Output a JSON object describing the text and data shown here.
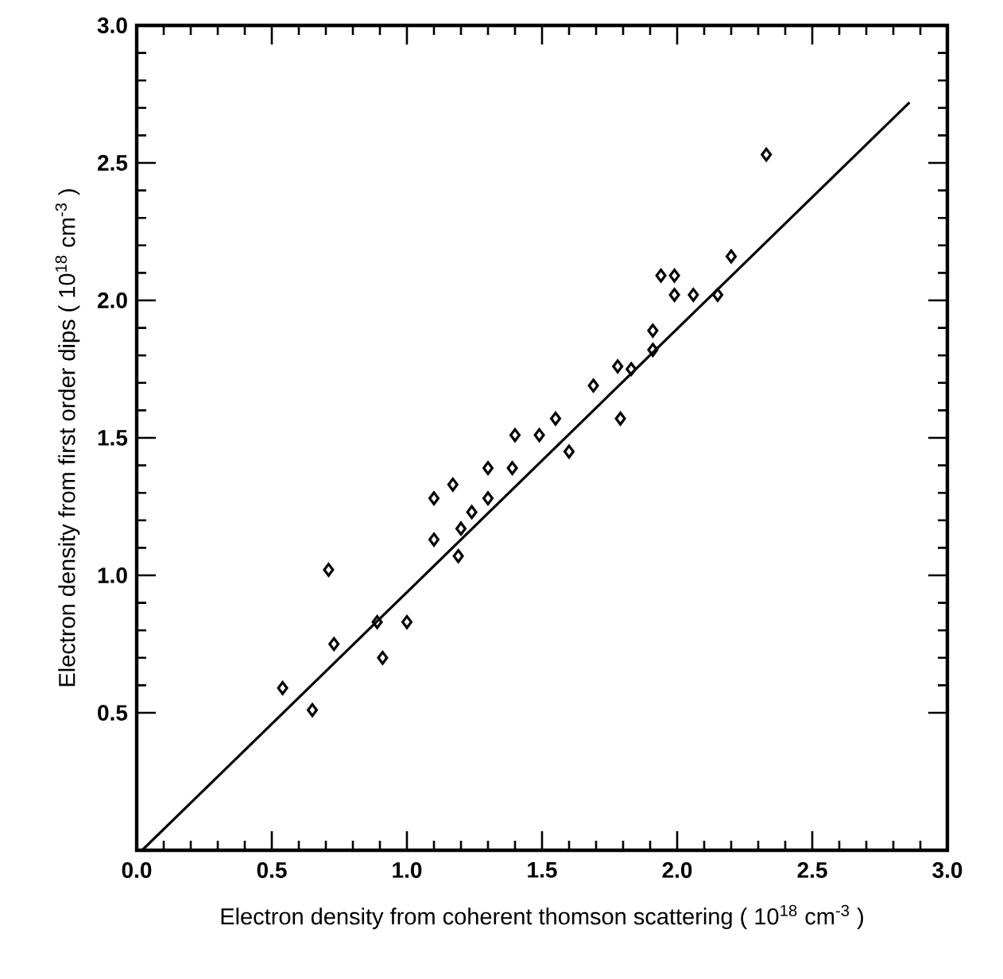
{
  "chart_data": {
    "type": "scatter",
    "xlabel": "Electron density from coherent thomson scattering ( 10$^{18}$ cm$^{-3}$ )",
    "ylabel": "Electron density from first order dips ( 10$^{18}$ cm$^{-3}$ )",
    "xlim": [
      0,
      3
    ],
    "ylim": [
      0,
      3
    ],
    "xticks": [
      {
        "value": 0,
        "label": "0.0"
      },
      0.5,
      {
        "value": 1,
        "label": "1.0"
      },
      1.5,
      {
        "value": 2,
        "label": "2.0"
      },
      2.5,
      {
        "value": 3,
        "label": "3.0"
      }
    ],
    "yticks": [
      {
        "value": 0.5,
        "label": "0.5"
      },
      {
        "value": 1,
        "label": "1.0"
      },
      {
        "value": 1.5,
        "label": "1.5"
      },
      {
        "value": 2,
        "label": "2.0"
      },
      {
        "value": 2.5,
        "label": "2.5"
      },
      {
        "value": 3,
        "label": "3.0"
      }
    ],
    "grid": false,
    "series": [
      {
        "color": "#000000",
        "marker": "diamond",
        "x": [
          0.54,
          0.65,
          0.71,
          0.73,
          0.89,
          0.91,
          1.0,
          1.1,
          1.17,
          1.1,
          1.19,
          1.2,
          1.24,
          1.3,
          1.3,
          1.39,
          1.4,
          1.49,
          1.55,
          1.6,
          1.69,
          1.79,
          1.78,
          1.83,
          1.91,
          1.91,
          1.94,
          1.99,
          1.99,
          2.06,
          2.15,
          2.2,
          2.33
        ],
        "values": [
          0.59,
          0.51,
          1.02,
          0.75,
          0.83,
          0.7,
          0.83,
          1.28,
          1.33,
          1.13,
          1.07,
          1.17,
          1.23,
          1.28,
          1.39,
          1.39,
          1.51,
          1.51,
          1.57,
          1.45,
          1.69,
          1.57,
          1.76,
          1.75,
          1.82,
          1.89,
          2.09,
          2.09,
          2.02,
          2.02,
          2.02,
          2.16,
          2.53
        ]
      },
      {
        "type": "line",
        "color": "#000000",
        "marker": "none",
        "line_style": "solid",
        "x": [
          0.02,
          2.86
        ],
        "values": [
          0,
          2.72
        ]
      }
    ]
  }
}
